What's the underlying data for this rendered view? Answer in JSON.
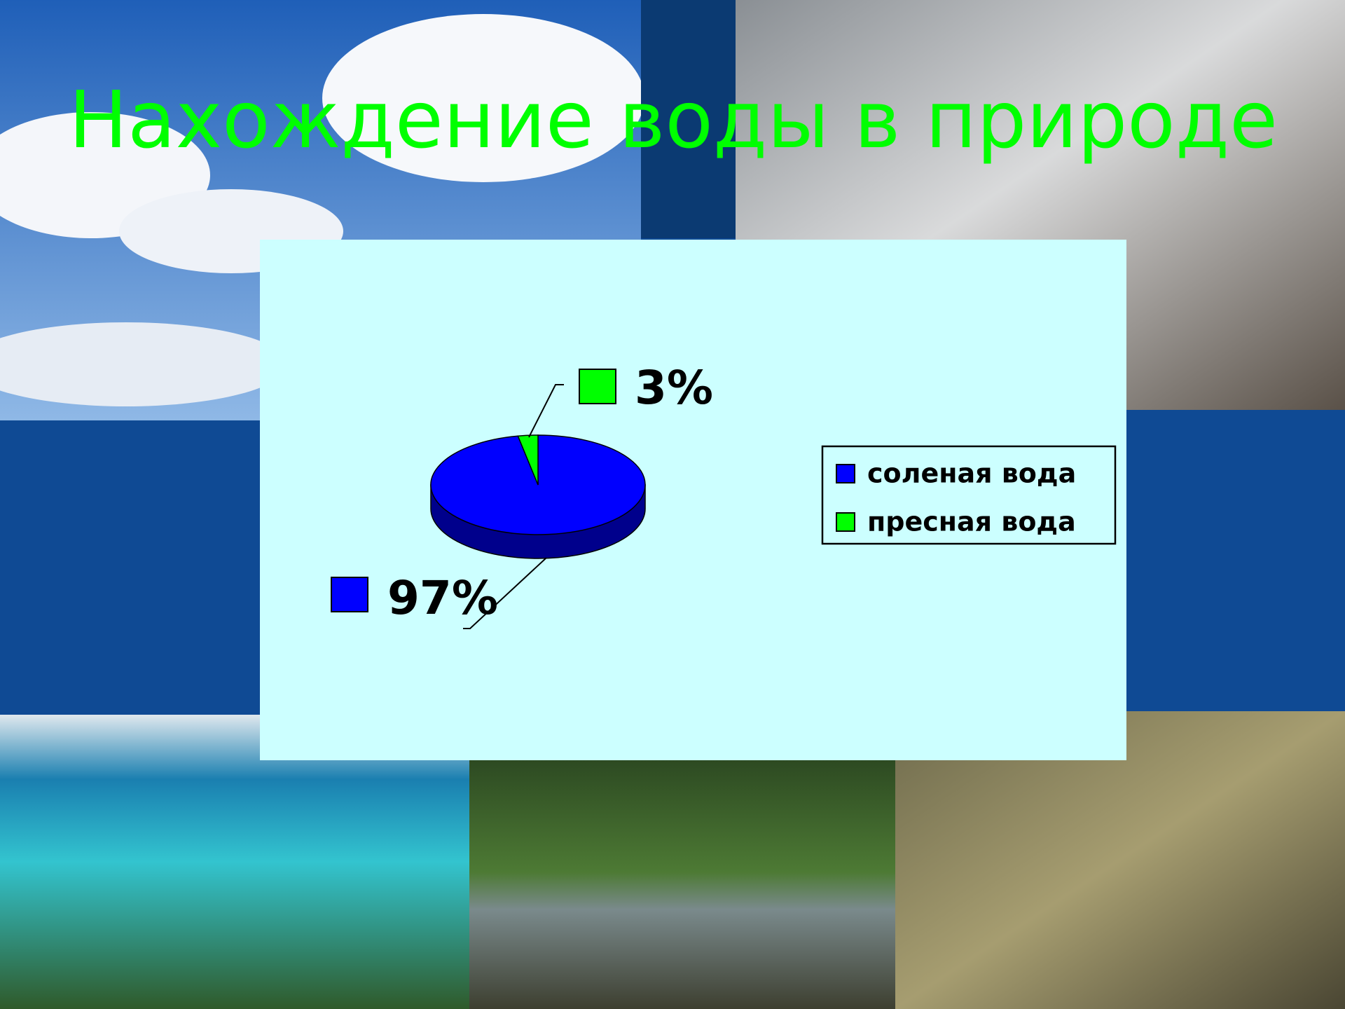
{
  "chart_data": {
    "type": "pie",
    "title": "Нахождение воды в природе",
    "categories": [
      "соленая вода",
      "пресная вода"
    ],
    "values": [
      97,
      3
    ],
    "value_labels": [
      "97%",
      "3%"
    ],
    "colors": [
      "#0000ff",
      "#00ff00"
    ],
    "legend": "right"
  }
}
